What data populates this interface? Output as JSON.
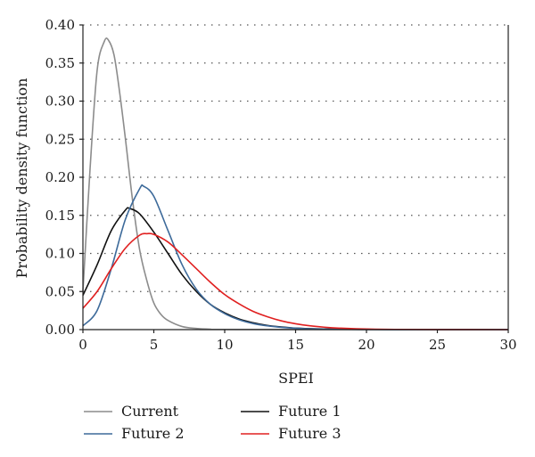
{
  "chart_data": {
    "type": "line",
    "xlabel": "SPEI",
    "ylabel": "Probability density function",
    "xlim": [
      0,
      30
    ],
    "ylim": [
      0,
      0.4
    ],
    "xticks": [
      0,
      5,
      10,
      15,
      20,
      25,
      30
    ],
    "xtick_labels": [
      "0",
      "5",
      "10",
      "15",
      "20",
      "25",
      "30"
    ],
    "yticks": [
      0,
      0.05,
      0.1,
      0.15,
      0.2,
      0.25,
      0.3,
      0.35,
      0.4
    ],
    "ytick_labels": [
      "0.00",
      "0.05",
      "0.10",
      "0.15",
      "0.20",
      "0.25",
      "0.30",
      "0.35",
      "0.40"
    ],
    "grid": "horizontal-dotted",
    "legend_position": "bottom",
    "series": [
      {
        "name": "Current",
        "color": "#8c8c8c",
        "x": [
          0,
          0.5,
          1.0,
          1.5,
          1.8,
          2.2,
          2.6,
          3.0,
          3.5,
          4.0,
          4.5,
          5.0,
          5.5,
          6.0,
          7.0,
          8.0,
          9.0,
          10.0,
          30.0
        ],
        "y": [
          0.05,
          0.21,
          0.34,
          0.378,
          0.38,
          0.36,
          0.31,
          0.25,
          0.17,
          0.105,
          0.065,
          0.035,
          0.02,
          0.012,
          0.004,
          0.0015,
          0.0005,
          0.0002,
          0.0
        ]
      },
      {
        "name": "Future 1",
        "color": "#111111",
        "x": [
          0,
          1,
          2,
          3,
          3.3,
          4,
          5,
          6,
          7,
          8,
          9,
          10,
          11,
          12,
          13,
          14,
          15,
          16,
          18,
          20,
          22,
          30
        ],
        "y": [
          0.045,
          0.085,
          0.13,
          0.157,
          0.159,
          0.152,
          0.128,
          0.1,
          0.072,
          0.05,
          0.033,
          0.022,
          0.014,
          0.009,
          0.0055,
          0.0035,
          0.002,
          0.0013,
          0.0005,
          0.0002,
          0.0001,
          0.0
        ]
      },
      {
        "name": "Future 2",
        "color": "#3d6a9a",
        "x": [
          0,
          1,
          2,
          3,
          4,
          4.3,
          5,
          6,
          7,
          8,
          9,
          10,
          11,
          12,
          13,
          14,
          15,
          16,
          18,
          20,
          22,
          30
        ],
        "y": [
          0.005,
          0.025,
          0.08,
          0.145,
          0.185,
          0.188,
          0.175,
          0.13,
          0.085,
          0.053,
          0.033,
          0.021,
          0.013,
          0.008,
          0.005,
          0.003,
          0.0018,
          0.001,
          0.0004,
          0.0002,
          0.0001,
          0.0
        ]
      },
      {
        "name": "Future 3",
        "color": "#e02020",
        "x": [
          0,
          1,
          2,
          3,
          4,
          4.5,
          5,
          6,
          7,
          8,
          9,
          10,
          11,
          12,
          13,
          14,
          15,
          16,
          17,
          18,
          20,
          22,
          25,
          30
        ],
        "y": [
          0.028,
          0.05,
          0.08,
          0.107,
          0.124,
          0.126,
          0.125,
          0.115,
          0.098,
          0.08,
          0.062,
          0.046,
          0.034,
          0.024,
          0.017,
          0.0115,
          0.0077,
          0.005,
          0.0032,
          0.002,
          0.0008,
          0.0003,
          0.0001,
          0.0
        ]
      }
    ]
  }
}
